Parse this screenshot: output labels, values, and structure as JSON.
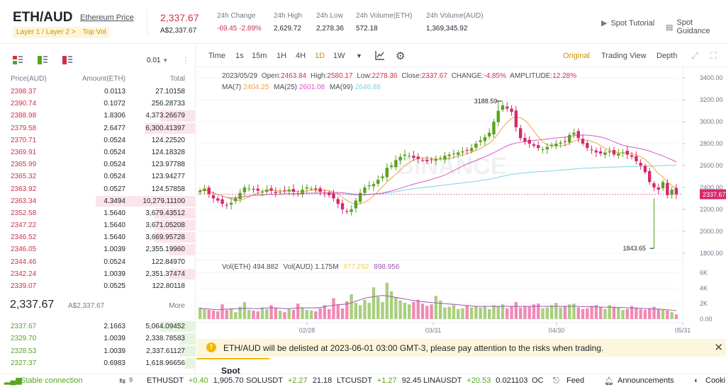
{
  "header": {
    "pair": "ETH/AUD",
    "pair_link": "Ethereum Price",
    "tags": [
      "Layer 1 / Layer 2 >",
      "Top Vol"
    ],
    "last_price": "2,337.67",
    "last_fiat": "A$2,337.67",
    "stats": [
      {
        "label": "24h Change",
        "value": "-69.45 -2.89%",
        "red": true
      },
      {
        "label": "24h High",
        "value": "2,629.72"
      },
      {
        "label": "24h Low",
        "value": "2,278.36"
      },
      {
        "label": "24h Volume(ETH)",
        "value": "572.18"
      },
      {
        "label": "24h Volume(AUD)",
        "value": "1,369,345.92"
      }
    ],
    "links": [
      {
        "label": "Spot Tutorial",
        "icon": "play-circle-icon"
      },
      {
        "label": "Spot Guidance",
        "icon": "document-icon"
      }
    ]
  },
  "orderbook": {
    "precision": "0.01",
    "columns": [
      "Price(AUD)",
      "Amount(ETH)",
      "Total"
    ],
    "asks": [
      {
        "price": "2398.37",
        "amount": "0.0113",
        "total": "27.10158",
        "depth": 0
      },
      {
        "price": "2390.74",
        "amount": "0.1072",
        "total": "256.28733",
        "depth": 0
      },
      {
        "price": "2388.98",
        "amount": "1.8306",
        "total": "4,373.26679",
        "depth": 0.35
      },
      {
        "price": "2379.58",
        "amount": "2.6477",
        "total": "6,300.41397",
        "depth": 0.51
      },
      {
        "price": "2370.71",
        "amount": "0.0524",
        "total": "124.22520",
        "depth": 0
      },
      {
        "price": "2369.91",
        "amount": "0.0524",
        "total": "124.18328",
        "depth": 0
      },
      {
        "price": "2365.99",
        "amount": "0.0524",
        "total": "123.97788",
        "depth": 0
      },
      {
        "price": "2365.32",
        "amount": "0.0524",
        "total": "123.94277",
        "depth": 0
      },
      {
        "price": "2363.92",
        "amount": "0.0527",
        "total": "124.57858",
        "depth": 0
      },
      {
        "price": "2363.34",
        "amount": "4.3494",
        "total": "10,279.11100",
        "depth": 1
      },
      {
        "price": "2352.58",
        "amount": "1.5640",
        "total": "3,679.43512",
        "depth": 0.41
      },
      {
        "price": "2347.22",
        "amount": "1.5640",
        "total": "3,671.05208",
        "depth": 0.41
      },
      {
        "price": "2346.52",
        "amount": "1.5640",
        "total": "3,669.95728",
        "depth": 0.41
      },
      {
        "price": "2346.05",
        "amount": "1.0039",
        "total": "2,355.19960",
        "depth": 0.26
      },
      {
        "price": "2344.46",
        "amount": "0.0524",
        "total": "122.84970",
        "depth": 0
      },
      {
        "price": "2342.24",
        "amount": "1.0039",
        "total": "2,351.37474",
        "depth": 0.26
      },
      {
        "price": "2339.07",
        "amount": "0.0525",
        "total": "122.80118",
        "depth": 0
      }
    ],
    "mid_price": "2,337.67",
    "mid_fiat": "A$2,337.67",
    "more": "More",
    "bids": [
      {
        "price": "2337.67",
        "amount": "2.1663",
        "total": "5,064.09452",
        "depth": 0.35
      },
      {
        "price": "2329.70",
        "amount": "1.0039",
        "total": "2,338.78583",
        "depth": 0.15
      },
      {
        "price": "2328.53",
        "amount": "1.0039",
        "total": "2,337.61127",
        "depth": 0.15
      },
      {
        "price": "2327.37",
        "amount": "0.6983",
        "total": "1,618.96656",
        "depth": 0.1
      }
    ]
  },
  "toolbar": {
    "intervals": [
      "Time",
      "1s",
      "15m",
      "1H",
      "4H",
      "1D",
      "1W"
    ],
    "active_interval": "1D",
    "views": [
      "Original",
      "Trading View",
      "Depth"
    ],
    "active_view": "Original"
  },
  "chart_data": {
    "type": "candlestick",
    "info_line": {
      "date": "2023/05/29",
      "open": "2463.84",
      "high": "2580.17",
      "low": "2278.36",
      "close": "2337.67",
      "change": "-4.85%",
      "amplitude": "12.28%"
    },
    "ma": [
      {
        "name": "MA(7)",
        "value": "2404.25",
        "color": "#f0a04b"
      },
      {
        "name": "MA(25)",
        "value": "2601.08",
        "color": "#d957c9"
      },
      {
        "name": "MA(99)",
        "value": "2646.88",
        "color": "#7ad4e8"
      }
    ],
    "price_axis": [
      "3400.00",
      "3200.00",
      "3000.00",
      "2800.00",
      "2600.00",
      "2400.00",
      "2200.00",
      "2000.00",
      "1800.00"
    ],
    "price_range": [
      1760,
      3440
    ],
    "current_price_tag": "2337.67",
    "annotations": [
      {
        "label": "3188.59",
        "value": 3188.59
      },
      {
        "label": "1843.65",
        "value": 1843.65
      }
    ],
    "x_axis": [
      "02/28",
      "03/31",
      "04/30",
      "05/31"
    ],
    "volume_legend": [
      {
        "name": "Vol(ETH)",
        "value": "494.882",
        "color": "#474d57"
      },
      {
        "name": "Vol(AUD)",
        "value": "1.175M",
        "color": "#474d57"
      },
      {
        "name": "",
        "value": "977.292",
        "color": "#f0d060"
      },
      {
        "name": "",
        "value": "898.956",
        "color": "#9b59b6"
      }
    ],
    "volume_axis": [
      "6K",
      "4K",
      "2K",
      "0.00"
    ],
    "volume_range": [
      0,
      6500
    ],
    "watermark": "BINANCE",
    "closes": [
      2370,
      2390,
      2340,
      2300,
      2280,
      2250,
      2240,
      2260,
      2300,
      2350,
      2400,
      2390,
      2380,
      2370,
      2360,
      2380,
      2370,
      2350,
      2360,
      2370,
      2380,
      2360,
      2340,
      2380,
      2400,
      2390,
      2380,
      2360,
      2350,
      2330,
      2300,
      2250,
      2200,
      2180,
      2200,
      2280,
      2350,
      2400,
      2420,
      2430,
      2470,
      2500,
      2580,
      2600,
      2650,
      2680,
      2700,
      2690,
      2670,
      2660,
      2650,
      2640,
      2650,
      2660,
      2670,
      2690,
      2700,
      2710,
      2720,
      2730,
      2740,
      2760,
      2800,
      2830,
      2860,
      2900,
      3000,
      3100,
      3150,
      3120,
      3090,
      2950,
      2850,
      2820,
      2800,
      2780,
      2760,
      2750,
      2770,
      2790,
      2800,
      2810,
      2820,
      2880,
      2900,
      2850,
      2800,
      2760,
      2740,
      2720,
      2710,
      2720,
      2730,
      2700,
      2710,
      2720,
      2700,
      2680,
      2640,
      2600,
      2540,
      2450,
      2400,
      2380,
      2450,
      2330,
      2380,
      2337
    ],
    "volumes": [
      1500,
      1300,
      1200,
      1100,
      1000,
      1900,
      1200,
      1400,
      900,
      1600,
      2200,
      1200,
      1100,
      1000,
      1500,
      1300,
      1800,
      1400,
      1100,
      900,
      1300,
      1200,
      2000,
      1500,
      1200,
      1100,
      1000,
      1400,
      1800,
      1300,
      2700,
      1900,
      1400,
      2300,
      3200,
      2100,
      1800,
      2500,
      2100,
      4100,
      2900,
      2200,
      4700,
      3600,
      2800,
      2400,
      2100,
      1900,
      2200,
      2500,
      2000,
      1700,
      1900,
      3000,
      2400,
      1500,
      1600,
      1800,
      1300,
      1400,
      1800,
      1500,
      1700,
      1500,
      1700,
      1300,
      1800,
      1600,
      1900,
      1400,
      1700,
      2200,
      1500,
      1700,
      1600,
      1900,
      2000,
      1400,
      1500,
      1800,
      2100,
      1500,
      1700,
      1900,
      2000,
      1500,
      1300,
      1400,
      1700,
      1800,
      1500,
      1300,
      1800,
      1600,
      1500,
      1200,
      1300,
      1700,
      1500,
      1300,
      1200,
      1400,
      1600,
      1300,
      1200,
      1100,
      900,
      600
    ],
    "ma_volume_line": [
      1400,
      1350,
      1300,
      1250,
      1200,
      1250,
      1300,
      1300,
      1350,
      1350,
      1400,
      1400,
      1350,
      1350,
      1400,
      1450,
      1450,
      1450,
      1400,
      1350,
      1350,
      1400,
      1450,
      1450,
      1450,
      1450,
      1450,
      1500,
      1600,
      1700,
      1800,
      1850,
      1900,
      1950,
      2100,
      2300,
      2500,
      2700,
      2800,
      2900,
      3000,
      3050,
      3000,
      2900,
      2800,
      2700,
      2600,
      2500,
      2400,
      2300,
      2250,
      2200,
      2150,
      2100,
      2050,
      2000,
      1950,
      1900,
      1850,
      1800,
      1750,
      1700,
      1650,
      1650,
      1650,
      1650,
      1650,
      1650,
      1650,
      1650,
      1650,
      1650,
      1650,
      1650,
      1650,
      1650,
      1650,
      1650,
      1650,
      1650,
      1650,
      1650,
      1650,
      1650,
      1650,
      1650,
      1600,
      1600,
      1600,
      1600,
      1550,
      1550,
      1550,
      1500,
      1500,
      1500,
      1450,
      1450,
      1400,
      1400,
      1350,
      1350,
      1300,
      1300,
      1250,
      1200,
      1150,
      1100
    ]
  },
  "notice": {
    "text": "ETH/AUD will be delisted at 2023-06-01 03:00 GMT-3, please pay attention to the risks when trading."
  },
  "spot_tab": "Spot",
  "footer": {
    "connection": "Stable connection",
    "count": "9",
    "tickers": [
      {
        "symbol": "ETHUSDT",
        "change": "+0.40",
        "price": "1,905.70"
      },
      {
        "symbol": "SOLUSDT",
        "change": "+2.27",
        "price": "21.18"
      },
      {
        "symbol": "LTCUSDT",
        "change": "+1.27",
        "price": "92.45"
      },
      {
        "symbol": "LINAUSDT",
        "change": "+20.53",
        "price": "0.021103"
      }
    ],
    "oc": "OC",
    "feed": "Feed",
    "announcements": "Announcements",
    "cookie": "Cooki"
  }
}
